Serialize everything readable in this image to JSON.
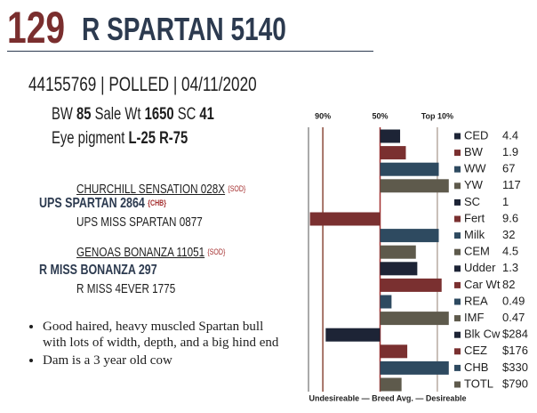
{
  "header": {
    "lot": "129",
    "name": "R SPARTAN 5140"
  },
  "info": "44155769 | POLLED | 04/11/2020",
  "stats": [
    {
      "label": "BW",
      "value": 85
    },
    {
      "label": "Sale Wt",
      "value": 1650
    },
    {
      "label": "SC",
      "value": 41
    }
  ],
  "eye_pigment": {
    "label": "Eye pigment",
    "left": "L-25",
    "right": "R-75"
  },
  "pedigree": {
    "sire_sire": {
      "name": "CHURCHILL SENSATION 028X",
      "tag": "{SOD}"
    },
    "sire": {
      "name": "UPS SPARTAN 2864",
      "tag": "{CHB}"
    },
    "sire_dam": {
      "name": "UPS MISS SPARTAN 0877"
    },
    "dam_sire": {
      "name": "GENOAS BONANZA 11051",
      "tag": "{SOD}"
    },
    "dam": {
      "name": "R MISS BONANZA 297"
    },
    "dam_dam": {
      "name": "R MISS 4EVER 1775"
    }
  },
  "notes": [
    "Good haired, heavy muscled Spartan bull with lots of width, depth, and a big hind end",
    "Dam is a 3 year old cow"
  ],
  "chart_data": {
    "type": "bar",
    "orientation": "horizontal",
    "categories": [
      "CED",
      "BW",
      "WW",
      "YW",
      "SC",
      "Fert",
      "Milk",
      "CEM",
      "Udder",
      "Car Wt",
      "REA",
      "IMF",
      "Blk Cw",
      "CEZ",
      "CHB",
      "TOTL"
    ],
    "epds": [
      "4.4",
      "1.9",
      "67",
      "117",
      "1",
      "9.6",
      "32",
      "4.5",
      "1.3",
      "82",
      "0.49",
      "0.47",
      "$284",
      "$176",
      "$330",
      "$790"
    ],
    "values": [
      36,
      32,
      9,
      2,
      50,
      99,
      9,
      25,
      24,
      7,
      42,
      2,
      88,
      31,
      2,
      35
    ],
    "colors": [
      "#1d2436",
      "#7a3030",
      "#2e4a60",
      "#5e5a4c",
      "#1d2436",
      "#7a3030",
      "#2e4a60",
      "#5e5a4c",
      "#1d2436",
      "#7a3030",
      "#2e4a60",
      "#5e5a4c",
      "#1d2436",
      "#7a3030",
      "#2e4a60",
      "#5e5a4c"
    ],
    "baseline": 50,
    "xlim": [
      100,
      0
    ],
    "xticks": [
      {
        "value": 90,
        "label": "90%"
      },
      {
        "value": 50,
        "label": "50%"
      },
      {
        "value": 10,
        "label": "Top 10%"
      }
    ],
    "footer": "Undesireable — Breed Avg. — Desireable"
  }
}
